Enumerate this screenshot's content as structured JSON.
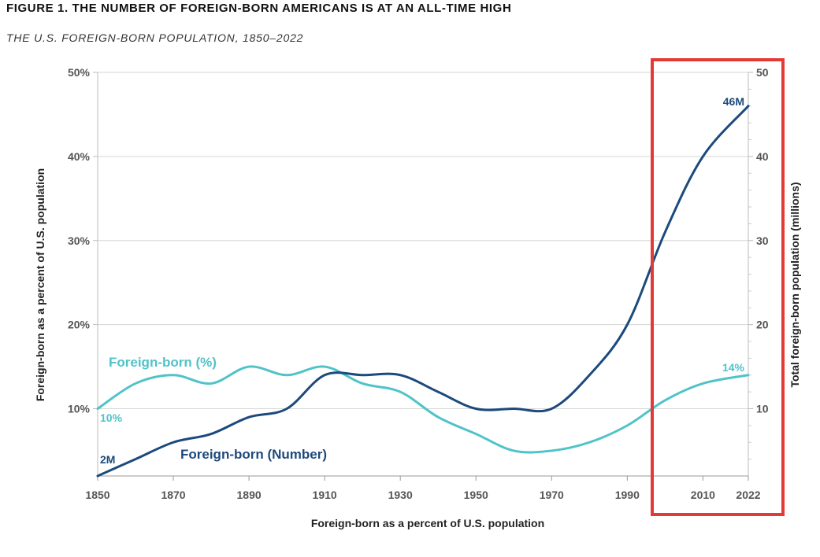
{
  "header": {
    "title": "FIGURE 1. THE NUMBER OF FOREIGN-BORN AMERICANS IS AT AN ALL-TIME HIGH",
    "subtitle": "THE U.S. FOREIGN-BORN POPULATION, 1850–2022"
  },
  "chart_data": {
    "type": "line",
    "title": "FIGURE 1. THE NUMBER OF FOREIGN-BORN AMERICANS IS AT AN ALL-TIME HIGH",
    "subtitle": "THE U.S. FOREIGN-BORN POPULATION, 1850–2022",
    "xlabel": "Foreign-born as a percent of U.S. population",
    "ylabel_left": "Foreign-born as a percent of U.S. population",
    "ylabel_right": "Total foreign-born population (millions)",
    "xlim": [
      1850,
      2022
    ],
    "ylim_left": [
      2,
      50
    ],
    "ylim_right": [
      2,
      50
    ],
    "x_ticks": [
      1850,
      1870,
      1890,
      1910,
      1930,
      1950,
      1970,
      1990,
      2010,
      2022
    ],
    "y_left_ticks": [
      {
        "value": 10,
        "label": "10%"
      },
      {
        "value": 20,
        "label": "20%"
      },
      {
        "value": 30,
        "label": "30%"
      },
      {
        "value": 40,
        "label": "40%"
      },
      {
        "value": 50,
        "label": "50%"
      }
    ],
    "y_right_ticks": [
      {
        "value": 10,
        "label": "10"
      },
      {
        "value": 20,
        "label": "20"
      },
      {
        "value": 30,
        "label": "30"
      },
      {
        "value": 40,
        "label": "40"
      },
      {
        "value": 50,
        "label": "50"
      }
    ],
    "series": [
      {
        "name": "Foreign-born (%)",
        "color": "#4fc3c8",
        "axis": "left",
        "x": [
          1850,
          1860,
          1870,
          1880,
          1890,
          1900,
          1910,
          1920,
          1930,
          1940,
          1950,
          1960,
          1970,
          1980,
          1990,
          2000,
          2010,
          2022
        ],
        "values": [
          10,
          13,
          14,
          13,
          15,
          14,
          15,
          13,
          12,
          9,
          7,
          5,
          5,
          6,
          8,
          11,
          13,
          14
        ],
        "start_label": "10%",
        "end_label": "14%"
      },
      {
        "name": "Foreign-born (Number)",
        "color": "#1c4a7c",
        "axis": "right",
        "x": [
          1850,
          1860,
          1870,
          1880,
          1890,
          1900,
          1910,
          1920,
          1930,
          1940,
          1950,
          1960,
          1970,
          1980,
          1990,
          2000,
          2010,
          2022
        ],
        "values": [
          2,
          4,
          6,
          7,
          9,
          10,
          14,
          14,
          14,
          12,
          10,
          10,
          10,
          14,
          20,
          31,
          40,
          46
        ],
        "start_label": "2M",
        "end_label": "46M"
      }
    ],
    "annotation": {
      "type": "highlight-box",
      "color": "#e53935",
      "x_from": 1996,
      "x_to": 2022
    }
  }
}
